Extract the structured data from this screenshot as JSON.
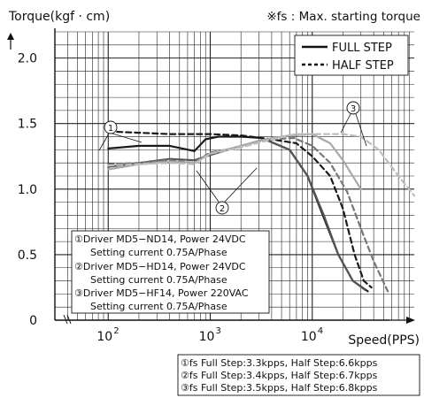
{
  "chart_data": {
    "type": "line",
    "ylabel": "Torque(kgf · cm)",
    "xlabel": "Speed(PPS)",
    "note": "※fs : Max. starting torque",
    "x_scale": "log",
    "xlim": [
      30,
      100000
    ],
    "ylim": [
      0,
      2.2
    ],
    "x_ticks": [
      {
        "value": 100,
        "label": "10",
        "exp": "2"
      },
      {
        "value": 1000,
        "label": "10",
        "exp": "3"
      },
      {
        "value": 10000,
        "label": "10",
        "exp": "4"
      }
    ],
    "y_ticks": [
      {
        "value": 0,
        "label": "0"
      },
      {
        "value": 0.5,
        "label": "0.5"
      },
      {
        "value": 1.0,
        "label": "1.0"
      },
      {
        "value": 1.5,
        "label": "1.5"
      },
      {
        "value": 2.0,
        "label": "2.0"
      }
    ],
    "grid": true,
    "legend": {
      "position": "top-right",
      "entries": [
        {
          "label": "FULL STEP",
          "style": "solid"
        },
        {
          "label": "HALF STEP",
          "style": "dashed"
        }
      ]
    },
    "series": [
      {
        "driver": "1",
        "step": "full",
        "color": "#1a1a1a",
        "x": [
          100,
          200,
          400,
          700,
          900,
          1200,
          2000,
          3200,
          6000,
          9000,
          13000,
          18000,
          25000,
          35000
        ],
        "y": [
          1.31,
          1.33,
          1.33,
          1.29,
          1.38,
          1.4,
          1.4,
          1.39,
          1.3,
          1.1,
          0.78,
          0.5,
          0.3,
          0.22
        ]
      },
      {
        "driver": "1",
        "step": "half",
        "color": "#1a1a1a",
        "x": [
          100,
          200,
          400,
          700,
          1000,
          2000,
          4000,
          7000,
          10000,
          15000,
          20000,
          26000,
          32000,
          38000
        ],
        "y": [
          1.44,
          1.43,
          1.42,
          1.42,
          1.42,
          1.41,
          1.38,
          1.35,
          1.25,
          1.1,
          0.85,
          0.5,
          0.3,
          0.25
        ]
      },
      {
        "driver": "2",
        "step": "full",
        "color": "#555555",
        "x": [
          100,
          200,
          400,
          700,
          1000,
          2000,
          3400,
          6000,
          9000,
          13000,
          18000,
          25000,
          33000
        ],
        "y": [
          1.17,
          1.2,
          1.23,
          1.22,
          1.26,
          1.33,
          1.38,
          1.3,
          1.1,
          0.8,
          0.5,
          0.3,
          0.23
        ]
      },
      {
        "driver": "2",
        "step": "half",
        "color": "#777777",
        "x": [
          100,
          200,
          400,
          700,
          1000,
          2000,
          4000,
          6600,
          10000,
          15000,
          22000,
          30000,
          40000,
          55000
        ],
        "y": [
          1.19,
          1.2,
          1.22,
          1.2,
          1.28,
          1.32,
          1.38,
          1.39,
          1.33,
          1.2,
          0.98,
          0.7,
          0.45,
          0.22
        ]
      },
      {
        "driver": "3",
        "step": "full",
        "color": "#a8a8a8",
        "x": [
          100,
          200,
          400,
          700,
          1000,
          2000,
          3500,
          6000,
          10000,
          15000,
          20000,
          30000
        ],
        "y": [
          1.15,
          1.19,
          1.21,
          1.2,
          1.27,
          1.33,
          1.38,
          1.41,
          1.42,
          1.35,
          1.22,
          1.0
        ]
      },
      {
        "driver": "3",
        "step": "half",
        "color": "#bdbdbd",
        "x": [
          100,
          200,
          400,
          700,
          1000,
          2000,
          4000,
          6800,
          10000,
          20000,
          30000,
          45000,
          70000,
          100000
        ],
        "y": [
          1.18,
          1.19,
          1.2,
          1.19,
          1.27,
          1.32,
          1.38,
          1.42,
          1.42,
          1.42,
          1.4,
          1.3,
          1.1,
          0.95
        ]
      }
    ],
    "callouts": [
      {
        "label": "①",
        "series": "1"
      },
      {
        "label": "②",
        "series": "2"
      },
      {
        "label": "③",
        "series": "3"
      }
    ],
    "info_box": [
      "①Driver MD5−ND14, Power 24VDC",
      "Setting current 0.75A/Phase",
      "②Driver MD5−HD14, Power 24VDC",
      "Setting current 0.75A/Phase",
      "③Driver MD5−HF14, Power 220VAC",
      "Setting current 0.75A/Phase"
    ],
    "fs_box": [
      "①fs Full Step:3.3kpps, Half Step:6.6kpps",
      "②fs Full Step:3.4kpps, Half Step:6.7kpps",
      "③fs Full Step:3.5kpps, Half Step:6.8kpps"
    ]
  }
}
